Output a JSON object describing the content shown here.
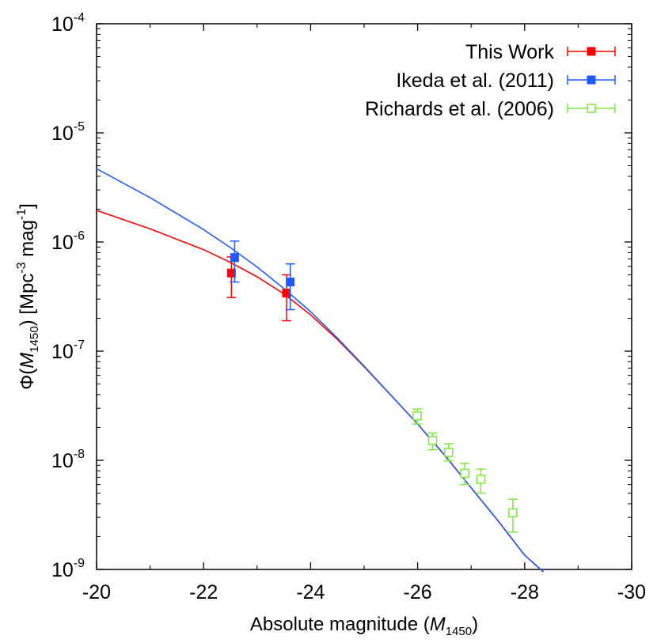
{
  "chart_data": {
    "type": "scatter",
    "title": "",
    "xlabel": "Absolute magnitude (M1450)",
    "xlabel_parts": {
      "main": "Absolute magnitude (",
      "var": "M",
      "sub": "1450",
      "close": ")"
    },
    "ylabel": "Φ(M1450) [Mpc-3 mag-1]",
    "ylabel_parts": {
      "phi": "Φ(",
      "var": "M",
      "sub": "1450",
      "mid": ") [Mpc",
      "exp1": "-3",
      "mag": " mag",
      "exp2": "-1",
      "close": "]"
    },
    "x_scale": "linear",
    "y_scale": "log",
    "xlim": [
      -20,
      -30
    ],
    "ylim": [
      1e-09,
      0.0001
    ],
    "x_ticks": [
      -20,
      -22,
      -24,
      -26,
      -28,
      -30
    ],
    "x_tick_labels": [
      "-20",
      "-22",
      "-24",
      "-26",
      "-28",
      "-30"
    ],
    "y_ticks": [
      -9,
      -8,
      -7,
      -6,
      -5,
      -4
    ],
    "y_tick_base": "10",
    "y_tick_exponents": [
      "-9",
      "-8",
      "-7",
      "-6",
      "-5",
      "-4"
    ],
    "legend_position": "top-right",
    "series": [
      {
        "name": "This Work",
        "color": "#ff0000",
        "marker": "filled-square",
        "points": [
          {
            "x": -22.52,
            "y": 5.2e-07,
            "ylo": 3.1e-07,
            "yhi": 7.3e-07
          },
          {
            "x": -23.55,
            "y": 3.4e-07,
            "ylo": 1.9e-07,
            "yhi": 5e-07
          }
        ]
      },
      {
        "name": "Ikeda et al. (2011)",
        "color": "#1e5aff",
        "marker": "filled-square",
        "points": [
          {
            "x": -22.58,
            "y": 7.2e-07,
            "ylo": 4.3e-07,
            "yhi": 1.02e-06
          },
          {
            "x": -23.62,
            "y": 4.3e-07,
            "ylo": 2.4e-07,
            "yhi": 6.3e-07
          }
        ]
      },
      {
        "name": "Richards et al. (2006)",
        "color": "#7ee83c",
        "marker": "open-square",
        "points": [
          {
            "x": -25.99,
            "y": 2.55e-08,
            "ylo": 2.15e-08,
            "yhi": 2.95e-08
          },
          {
            "x": -26.28,
            "y": 1.52e-08,
            "ylo": 1.25e-08,
            "yhi": 1.78e-08
          },
          {
            "x": -26.58,
            "y": 1.18e-08,
            "ylo": 9.9e-09,
            "yhi": 1.42e-08
          },
          {
            "x": -26.88,
            "y": 7.6e-09,
            "ylo": 6e-09,
            "yhi": 9.4e-09
          },
          {
            "x": -27.18,
            "y": 6.7e-09,
            "ylo": 5e-09,
            "yhi": 8.3e-09
          },
          {
            "x": -27.78,
            "y": 3.3e-09,
            "ylo": 2.2e-09,
            "yhi": 4.4e-09
          }
        ]
      }
    ],
    "fit_curves": [
      {
        "name": "This Work fit",
        "color": "#ff0000",
        "x": [
          -20,
          -21,
          -22,
          -22.5,
          -23,
          -23.5,
          -24,
          -24.5,
          -25,
          -25.5,
          -26,
          -26.5,
          -27,
          -27.5,
          -28,
          -28.35
        ],
        "y": [
          1.95e-06,
          1.32e-06,
          8.5e-07,
          6.5e-07,
          4.8e-07,
          3.35e-07,
          2.15e-07,
          1.28e-07,
          7.2e-08,
          3.95e-08,
          2.15e-08,
          1.12e-08,
          5.6e-09,
          2.8e-09,
          1.35e-09,
          9.5e-10
        ]
      },
      {
        "name": "Ikeda et al. (2011) fit",
        "color": "#1e5aff",
        "x": [
          -20,
          -21,
          -22,
          -22.5,
          -23,
          -23.5,
          -24,
          -24.5,
          -25,
          -25.5,
          -26,
          -26.5,
          -27,
          -27.5,
          -28,
          -28.35
        ],
        "y": [
          4.7e-06,
          2.55e-06,
          1.3e-06,
          8.9e-07,
          5.9e-07,
          3.75e-07,
          2.3e-07,
          1.32e-07,
          7.3e-08,
          3.95e-08,
          2.15e-08,
          1.12e-08,
          5.6e-09,
          2.8e-09,
          1.35e-09,
          9.5e-10
        ]
      }
    ]
  }
}
